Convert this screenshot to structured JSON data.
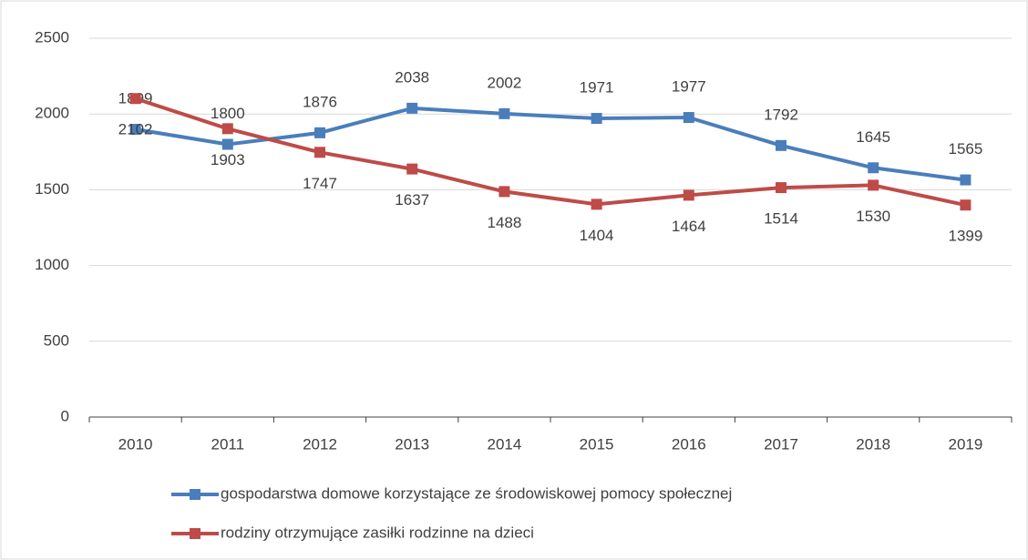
{
  "chart_data": {
    "type": "line",
    "categories": [
      "2010",
      "2011",
      "2012",
      "2013",
      "2014",
      "2015",
      "2016",
      "2017",
      "2018",
      "2019"
    ],
    "series": [
      {
        "name": "gospodarstwa domowe korzystające ze środowiskowej pomocy społecznej",
        "color": "#4a7ebb",
        "values": [
          1899,
          1800,
          1876,
          2038,
          2002,
          1971,
          1977,
          1792,
          1645,
          1565
        ]
      },
      {
        "name": "rodziny otrzymujące zasiłki rodzinne na dzieci",
        "color": "#be4b48",
        "values": [
          2102,
          1903,
          1747,
          1637,
          1488,
          1404,
          1464,
          1514,
          1530,
          1399
        ]
      }
    ],
    "ylim": [
      0,
      2500
    ],
    "yticks": [
      0,
      500,
      1000,
      1500,
      2000,
      2500
    ],
    "grid": true
  }
}
